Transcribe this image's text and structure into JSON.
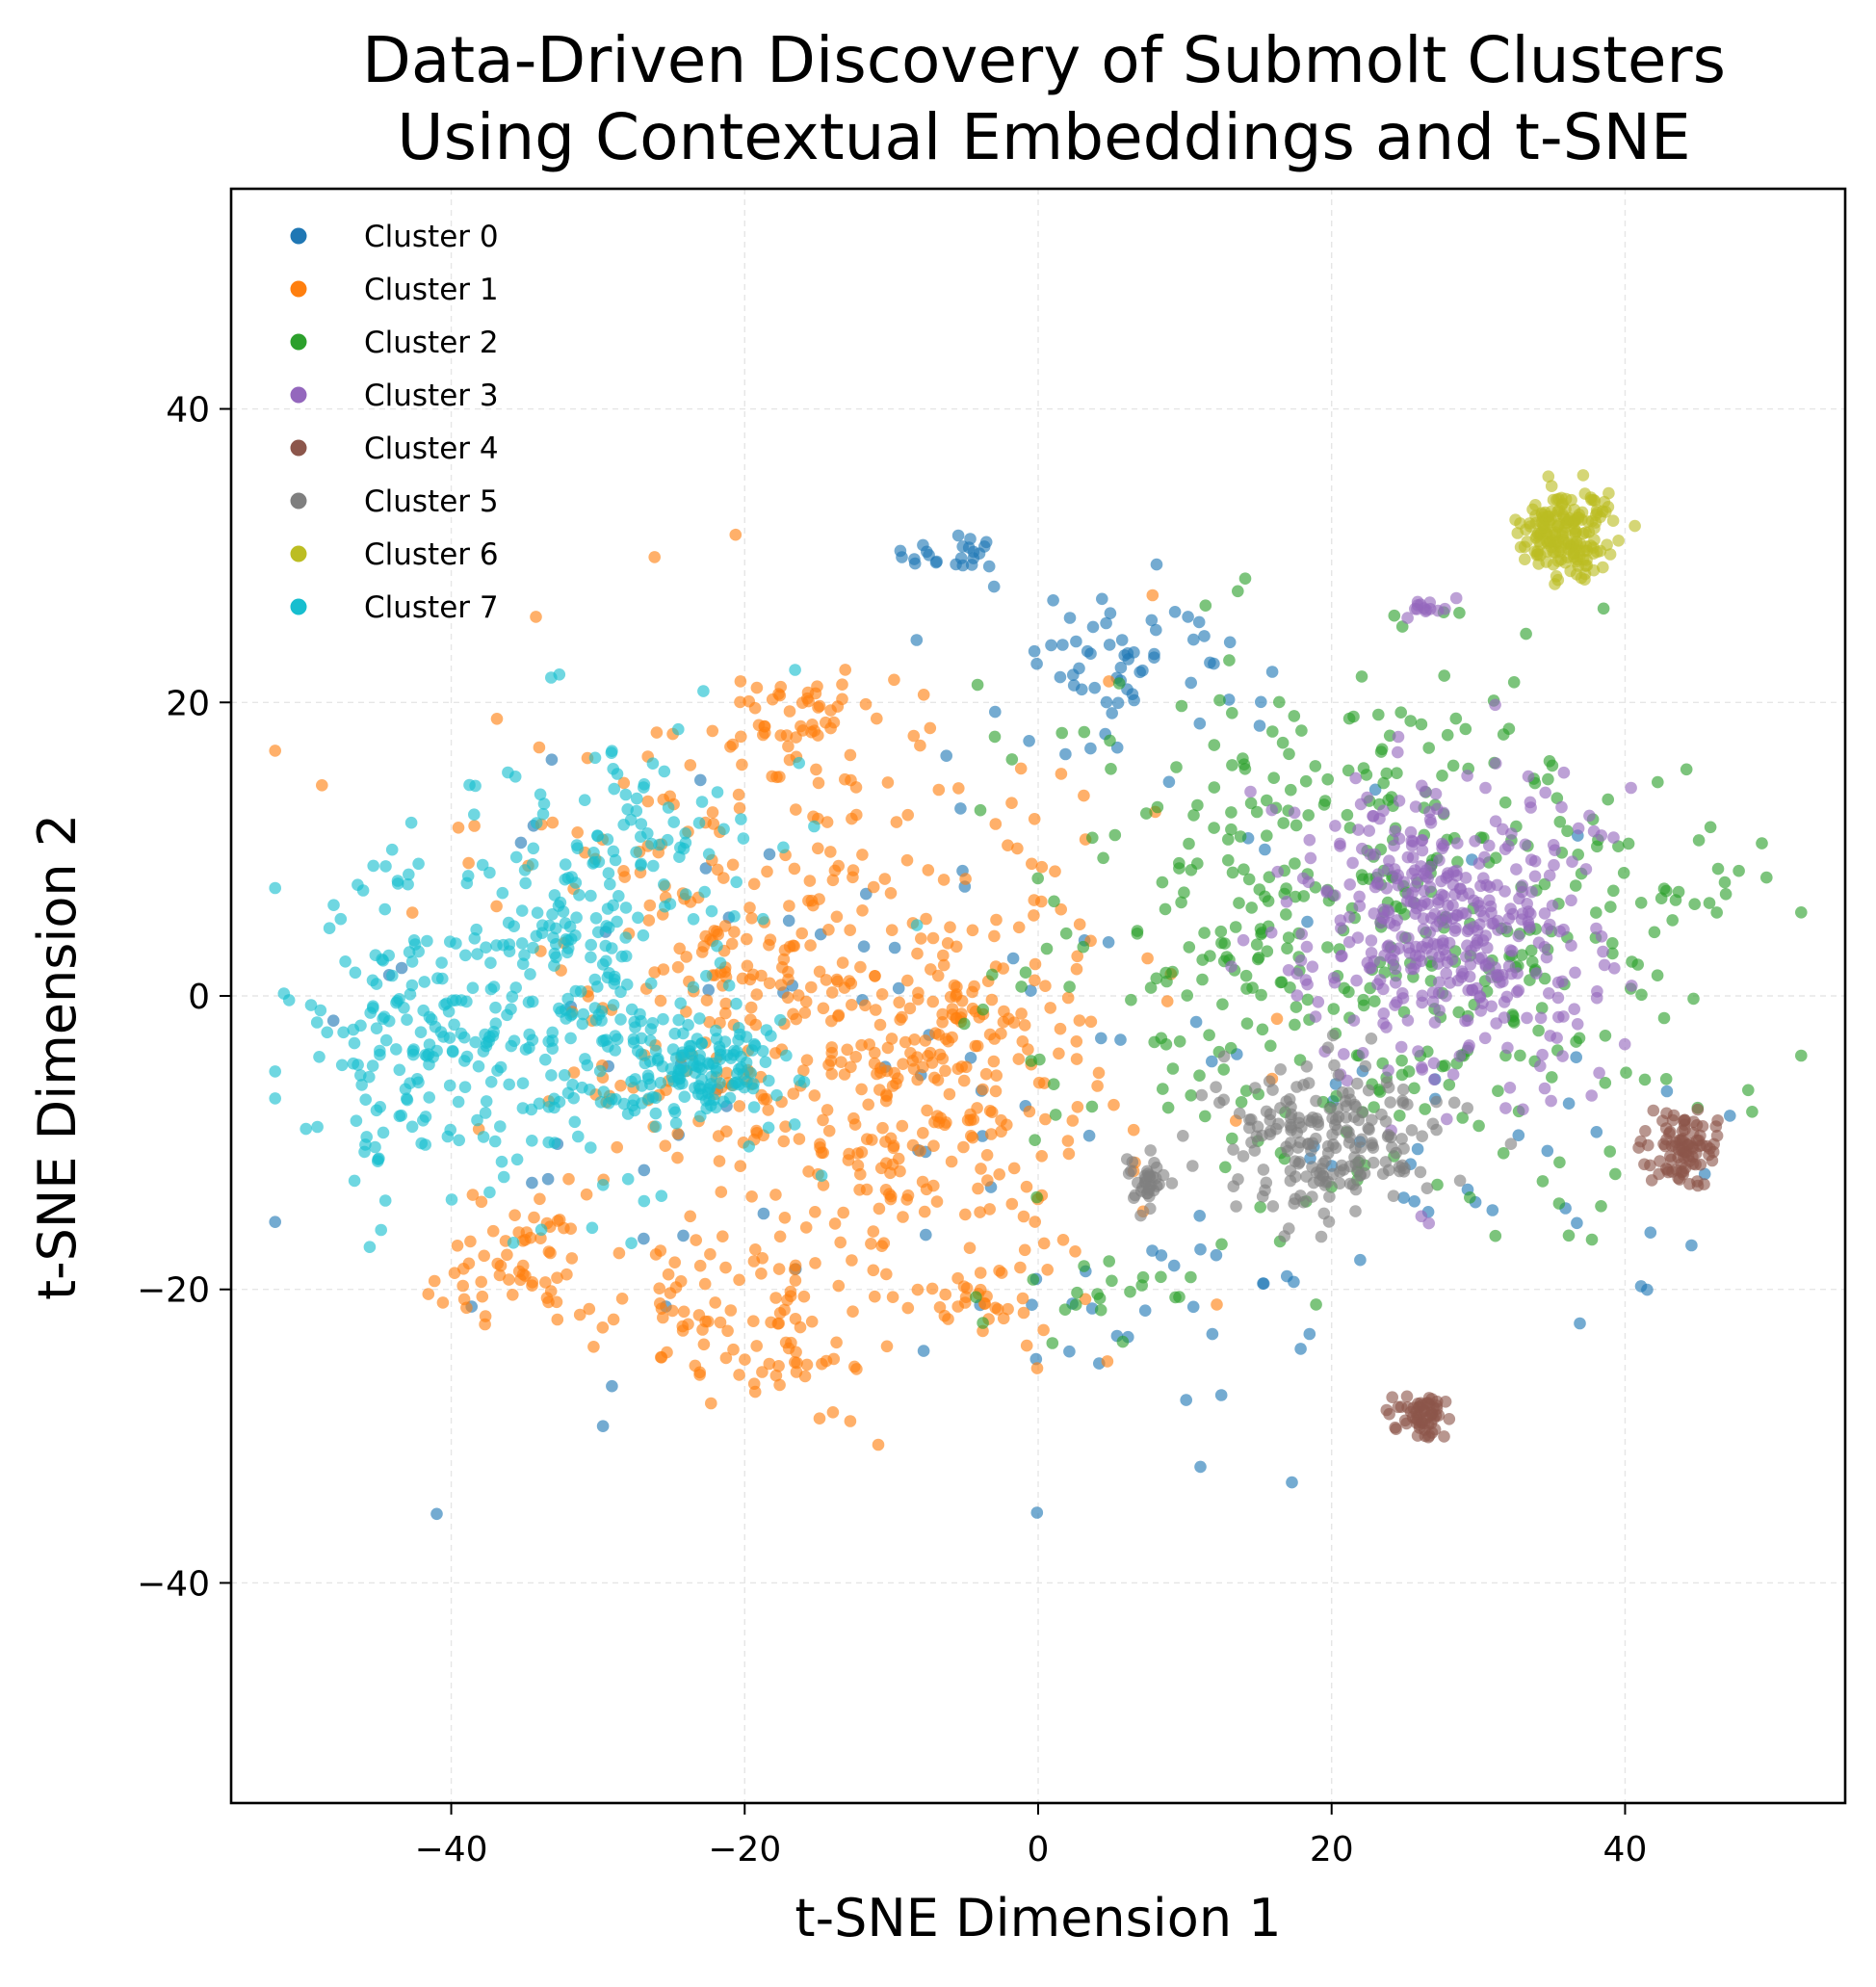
{
  "chart_data": {
    "type": "scatter",
    "title_lines": [
      "Data-Driven Discovery of Submolt Clusters",
      "Using Contextual Embeddings and t-SNE"
    ],
    "xlabel": "t-SNE Dimension 1",
    "ylabel": "t-SNE Dimension 2",
    "xlim": [
      -55,
      55
    ],
    "ylim": [
      -55,
      55
    ],
    "xticks": [
      -40,
      -20,
      0,
      20,
      40
    ],
    "yticks": [
      -40,
      -20,
      0,
      20,
      40
    ],
    "xtick_labels": [
      "−40",
      "−20",
      "0",
      "20",
      "40"
    ],
    "ytick_labels": [
      "−40",
      "−20",
      "0",
      "20",
      "40"
    ],
    "grid": true,
    "legend_position": "top-left",
    "series": [
      {
        "name": "Cluster 0",
        "color": "#1f77b4",
        "blobs": [
          {
            "cx": -5.5,
            "cy": 30,
            "sx": 1.8,
            "sy": 0.8,
            "n": 22
          },
          {
            "cx": 5,
            "cy": 22,
            "sx": 5,
            "sy": 3,
            "n": 60
          },
          {
            "cx": -5,
            "cy": -6,
            "sx": 20,
            "sy": 14,
            "n": 90
          },
          {
            "cx": 10,
            "cy": -22,
            "sx": 6,
            "sy": 3,
            "n": 22
          },
          {
            "cx": 28,
            "cy": -13,
            "sx": 10,
            "sy": 5,
            "n": 30
          }
        ]
      },
      {
        "name": "Cluster 1",
        "color": "#ff7f0e",
        "blobs": [
          {
            "cx": -17,
            "cy": 5,
            "sx": 10,
            "sy": 8,
            "n": 260
          },
          {
            "cx": -12,
            "cy": -8,
            "sx": 9,
            "sy": 7,
            "n": 300
          },
          {
            "cx": -16,
            "cy": 19,
            "sx": 2.5,
            "sy": 1.5,
            "n": 40
          },
          {
            "cx": -35,
            "cy": -18,
            "sx": 2.5,
            "sy": 2.5,
            "n": 60
          },
          {
            "cx": -19,
            "cy": -22,
            "sx": 4,
            "sy": 3,
            "n": 90
          },
          {
            "cx": -5,
            "cy": -2,
            "sx": 2.5,
            "sy": 3,
            "n": 50
          },
          {
            "cx": -4,
            "cy": -20,
            "sx": 1.5,
            "sy": 1.5,
            "n": 25
          }
        ]
      },
      {
        "name": "Cluster 2",
        "color": "#2ca02c",
        "blobs": [
          {
            "cx": 22,
            "cy": 5,
            "sx": 11,
            "sy": 10,
            "n": 460
          },
          {
            "cx": 5,
            "cy": -20,
            "sx": 3,
            "sy": 2,
            "n": 20
          },
          {
            "cx": 44,
            "cy": 7,
            "sx": 2,
            "sy": 1,
            "n": 12
          }
        ]
      },
      {
        "name": "Cluster 3",
        "color": "#9467bd",
        "blobs": [
          {
            "cx": 28,
            "cy": 5,
            "sx": 5,
            "sy": 5,
            "n": 420
          },
          {
            "cx": 26.5,
            "cy": 26.5,
            "sx": 0.6,
            "sy": 0.6,
            "n": 14
          }
        ]
      },
      {
        "name": "Cluster 4",
        "color": "#8c564b",
        "blobs": [
          {
            "cx": 44,
            "cy": -10.5,
            "sx": 1.2,
            "sy": 1.2,
            "n": 90
          },
          {
            "cx": 26,
            "cy": -28.5,
            "sx": 1,
            "sy": 0.8,
            "n": 60
          }
        ]
      },
      {
        "name": "Cluster 5",
        "color": "#7f7f7f",
        "blobs": [
          {
            "cx": 20,
            "cy": -10,
            "sx": 4,
            "sy": 2.5,
            "n": 200
          },
          {
            "cx": 7.5,
            "cy": -12.5,
            "sx": 0.8,
            "sy": 0.8,
            "n": 35
          }
        ]
      },
      {
        "name": "Cluster 6",
        "color": "#bcbd22",
        "blobs": [
          {
            "cx": 36,
            "cy": 31.5,
            "sx": 1.6,
            "sy": 1.5,
            "n": 180
          }
        ]
      },
      {
        "name": "Cluster 7",
        "color": "#17becf",
        "blobs": [
          {
            "cx": -35,
            "cy": -1,
            "sx": 6,
            "sy": 6,
            "n": 260
          },
          {
            "cx": -23,
            "cy": -5,
            "sx": 2.5,
            "sy": 2,
            "n": 140
          },
          {
            "cx": -44,
            "cy": -3,
            "sx": 3.5,
            "sy": 5,
            "n": 90
          },
          {
            "cx": -28,
            "cy": 8,
            "sx": 5,
            "sy": 5,
            "n": 100
          }
        ]
      }
    ]
  }
}
